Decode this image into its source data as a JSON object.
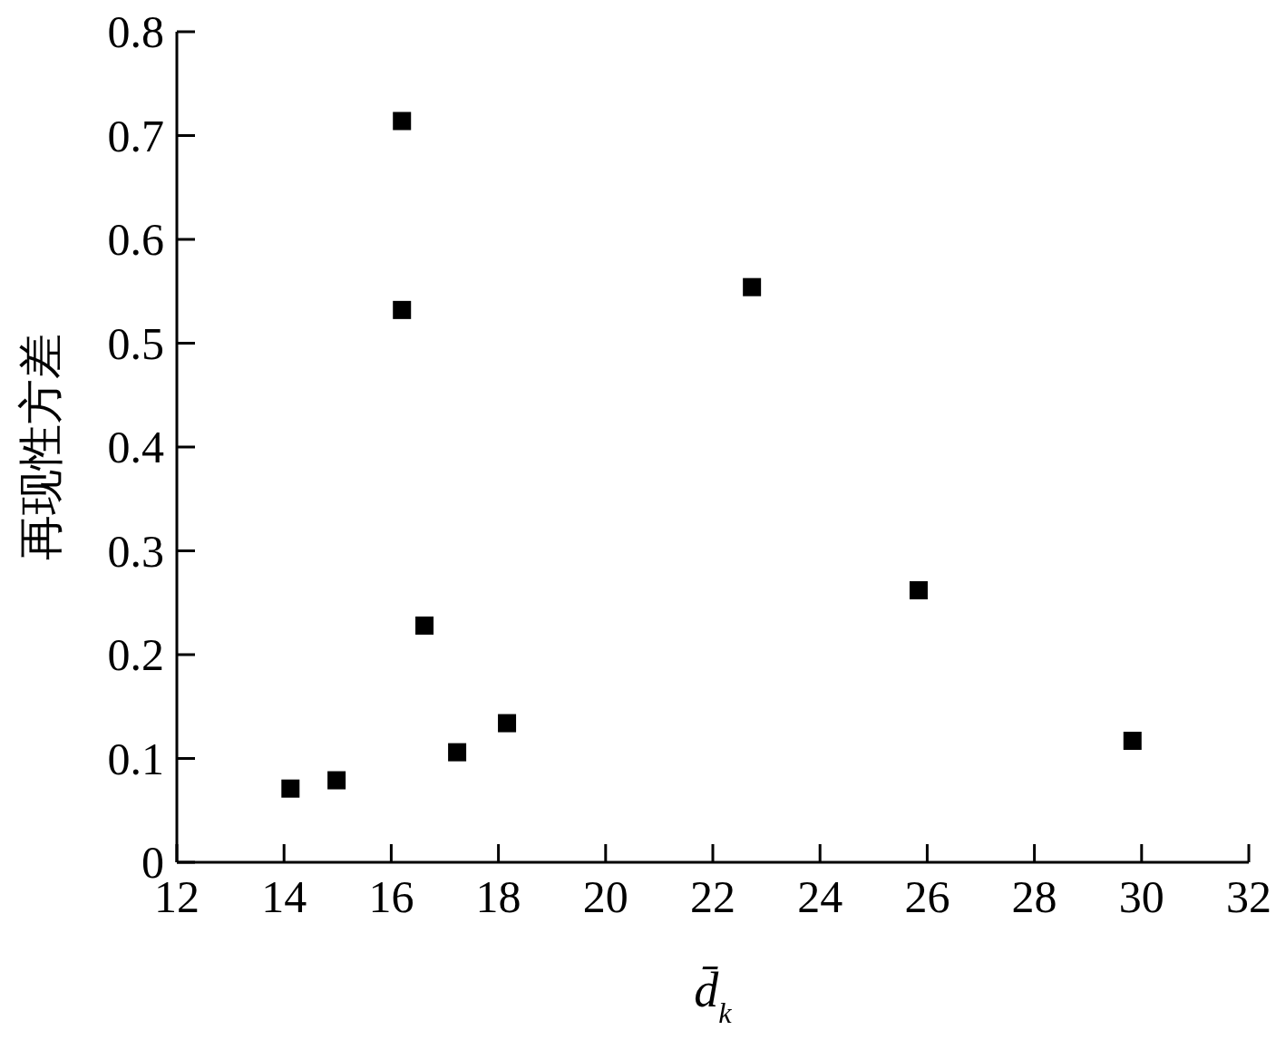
{
  "chart_data": {
    "type": "scatter",
    "xlabel": "d̄$_{k}$",
    "ylabel": "再现性方差",
    "x": [
      14.12,
      14.98,
      16.2,
      16.2,
      16.62,
      17.23,
      18.16,
      22.73,
      25.84,
      29.83
    ],
    "series": [
      {
        "color": "#000000",
        "values": [
          0.071,
          0.079,
          0.714,
          0.532,
          0.228,
          0.106,
          0.134,
          0.554,
          0.262,
          0.117
        ]
      }
    ],
    "xlim": [
      12,
      32
    ],
    "xticks": [
      12,
      14,
      16,
      18,
      20,
      22,
      24,
      26,
      28,
      30,
      32
    ],
    "ylim": [
      0,
      0.8
    ],
    "yticks": [
      0,
      0.1,
      0.2,
      0.3,
      0.4,
      0.5,
      0.6,
      0.7,
      0.8
    ],
    "marker": "square",
    "grid": false
  }
}
